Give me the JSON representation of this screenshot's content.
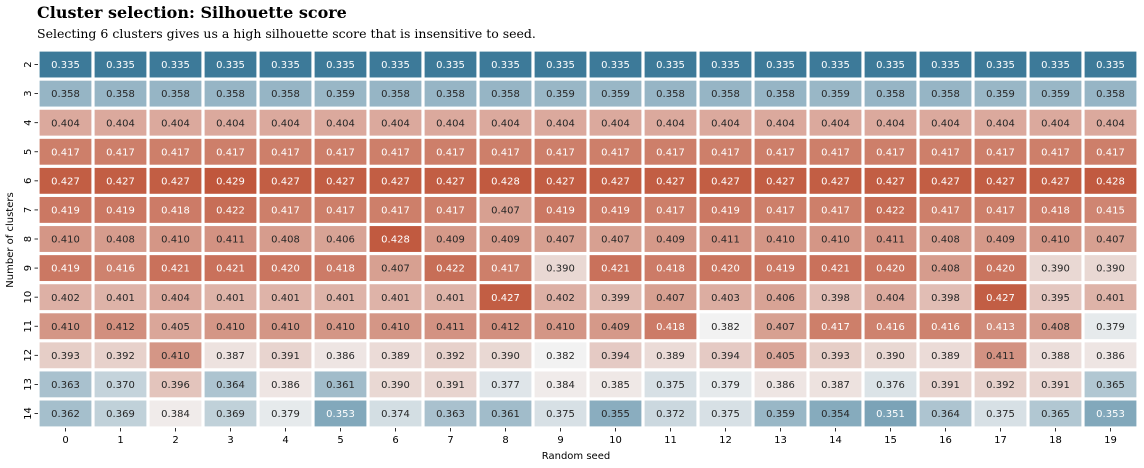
{
  "chart_data": {
    "type": "heatmap",
    "title": "Cluster selection: Silhouette score",
    "subtitle": "Selecting 6 clusters gives us a high silhouette score that is insensitive to seed.",
    "xlabel": "Random seed",
    "ylabel": "Number of clusters",
    "x_categories": [
      "0",
      "1",
      "2",
      "3",
      "4",
      "5",
      "6",
      "7",
      "8",
      "9",
      "10",
      "11",
      "12",
      "13",
      "14",
      "15",
      "16",
      "17",
      "18",
      "19"
    ],
    "y_categories": [
      "2",
      "3",
      "4",
      "5",
      "6",
      "7",
      "8",
      "9",
      "10",
      "11",
      "12",
      "13",
      "14"
    ],
    "values": [
      [
        0.335,
        0.335,
        0.335,
        0.335,
        0.335,
        0.335,
        0.335,
        0.335,
        0.335,
        0.335,
        0.335,
        0.335,
        0.335,
        0.335,
        0.335,
        0.335,
        0.335,
        0.335,
        0.335,
        0.335
      ],
      [
        0.358,
        0.358,
        0.358,
        0.358,
        0.358,
        0.359,
        0.358,
        0.358,
        0.358,
        0.359,
        0.359,
        0.358,
        0.358,
        0.358,
        0.359,
        0.358,
        0.358,
        0.359,
        0.359,
        0.358
      ],
      [
        0.404,
        0.404,
        0.404,
        0.404,
        0.404,
        0.404,
        0.404,
        0.404,
        0.404,
        0.404,
        0.404,
        0.404,
        0.404,
        0.404,
        0.404,
        0.404,
        0.404,
        0.404,
        0.404,
        0.404
      ],
      [
        0.417,
        0.417,
        0.417,
        0.417,
        0.417,
        0.417,
        0.417,
        0.417,
        0.417,
        0.417,
        0.417,
        0.417,
        0.417,
        0.417,
        0.417,
        0.417,
        0.417,
        0.417,
        0.417,
        0.417
      ],
      [
        0.427,
        0.427,
        0.427,
        0.429,
        0.427,
        0.427,
        0.427,
        0.427,
        0.428,
        0.427,
        0.427,
        0.427,
        0.427,
        0.427,
        0.427,
        0.427,
        0.427,
        0.427,
        0.427,
        0.428
      ],
      [
        0.419,
        0.419,
        0.418,
        0.422,
        0.417,
        0.417,
        0.417,
        0.417,
        0.407,
        0.419,
        0.419,
        0.417,
        0.419,
        0.417,
        0.417,
        0.422,
        0.417,
        0.417,
        0.418,
        0.415
      ],
      [
        0.41,
        0.408,
        0.41,
        0.411,
        0.408,
        0.406,
        0.428,
        0.409,
        0.409,
        0.407,
        0.407,
        0.409,
        0.411,
        0.41,
        0.41,
        0.411,
        0.408,
        0.409,
        0.41,
        0.407
      ],
      [
        0.419,
        0.416,
        0.421,
        0.421,
        0.42,
        0.418,
        0.407,
        0.422,
        0.417,
        0.39,
        0.421,
        0.418,
        0.42,
        0.419,
        0.421,
        0.42,
        0.408,
        0.42,
        0.39,
        0.39
      ],
      [
        0.402,
        0.401,
        0.404,
        0.401,
        0.401,
        0.401,
        0.401,
        0.401,
        0.427,
        0.402,
        0.399,
        0.407,
        0.403,
        0.406,
        0.398,
        0.404,
        0.398,
        0.427,
        0.395,
        0.401
      ],
      [
        0.41,
        0.412,
        0.405,
        0.41,
        0.41,
        0.41,
        0.41,
        0.411,
        0.412,
        0.41,
        0.409,
        0.418,
        0.382,
        0.407,
        0.417,
        0.416,
        0.416,
        0.413,
        0.408,
        0.379
      ],
      [
        0.393,
        0.392,
        0.41,
        0.387,
        0.391,
        0.386,
        0.389,
        0.392,
        0.39,
        0.382,
        0.394,
        0.389,
        0.394,
        0.405,
        0.393,
        0.39,
        0.389,
        0.411,
        0.388,
        0.386
      ],
      [
        0.363,
        0.37,
        0.396,
        0.364,
        0.386,
        0.361,
        0.39,
        0.391,
        0.377,
        0.384,
        0.385,
        0.375,
        0.379,
        0.386,
        0.387,
        0.376,
        0.391,
        0.392,
        0.391,
        0.365
      ],
      [
        0.362,
        0.369,
        0.384,
        0.369,
        0.379,
        0.353,
        0.374,
        0.363,
        0.361,
        0.375,
        0.355,
        0.372,
        0.375,
        0.359,
        0.354,
        0.351,
        0.364,
        0.375,
        0.365,
        0.353
      ]
    ],
    "value_format": "3 decimals",
    "color_scale": {
      "type": "diverging",
      "low_color": "#3d7a99",
      "mid_color": "#f2f2f2",
      "high_color": "#c0573c",
      "vmin": 0.335,
      "vcenter": 0.382,
      "vmax": 0.429
    },
    "cell_gap_color": "#ffffff",
    "colorbar": false
  }
}
